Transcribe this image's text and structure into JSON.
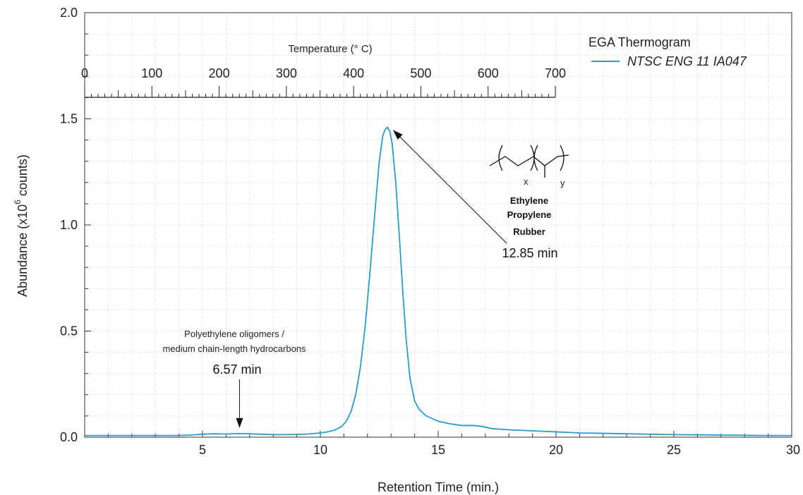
{
  "chart_data": {
    "type": "line",
    "title": "",
    "xlabel": "Retention Time (min.)",
    "ylabel_main": "Abundance (x10",
    "ylabel_exp": "6",
    "ylabel_tail": " counts)",
    "xlim": [
      0,
      30
    ],
    "ylim": [
      0,
      2.0
    ],
    "x_ticks": [
      5,
      10,
      15,
      20,
      25,
      30
    ],
    "x_tick_labels": [
      "5",
      "10",
      "15",
      "20",
      "25",
      "30"
    ],
    "y_ticks": [
      0,
      0.5,
      1.0,
      1.5,
      2.0
    ],
    "y_tick_labels": [
      "0.0",
      "0.5",
      "1.0",
      "1.5",
      "2.0"
    ],
    "grid": true,
    "legend": {
      "title": "EGA Thermogram",
      "placement": "top-right",
      "entries": [
        {
          "name": "NTSC ENG 11 IA047",
          "color": "#2a9cc8"
        }
      ]
    },
    "top_axis": {
      "label": "Temperature (° C)",
      "range": [
        0,
        700
      ],
      "tick_values": [
        0,
        100,
        200,
        300,
        400,
        500,
        600,
        700
      ],
      "tick_labels": [
        "0",
        "100",
        "200",
        "300",
        "400",
        "500",
        "600",
        "700"
      ]
    },
    "series": [
      {
        "name": "NTSC ENG 11 IA047",
        "color": "#2a9cc8",
        "x": [
          0,
          1,
          2,
          3,
          4,
          4.5,
          5,
          5.5,
          6,
          6.57,
          7,
          7.5,
          8,
          8.5,
          9,
          9.5,
          10,
          10.3,
          10.6,
          10.9,
          11.1,
          11.3,
          11.5,
          11.7,
          11.9,
          12.1,
          12.3,
          12.5,
          12.65,
          12.75,
          12.85,
          12.95,
          13.05,
          13.2,
          13.35,
          13.5,
          13.65,
          13.8,
          14.0,
          14.2,
          14.5,
          15,
          15.5,
          16,
          16.5,
          16.9,
          17.3,
          18,
          19,
          20,
          21,
          22,
          23,
          24,
          25,
          26,
          27,
          28,
          29,
          30
        ],
        "y": [
          0.008,
          0.008,
          0.008,
          0.008,
          0.008,
          0.01,
          0.014,
          0.016,
          0.015,
          0.017,
          0.016,
          0.014,
          0.012,
          0.012,
          0.013,
          0.015,
          0.02,
          0.025,
          0.033,
          0.05,
          0.075,
          0.12,
          0.2,
          0.33,
          0.52,
          0.77,
          1.04,
          1.3,
          1.42,
          1.45,
          1.46,
          1.44,
          1.38,
          1.2,
          0.95,
          0.68,
          0.45,
          0.28,
          0.17,
          0.13,
          0.1,
          0.075,
          0.063,
          0.055,
          0.055,
          0.05,
          0.04,
          0.035,
          0.03,
          0.025,
          0.02,
          0.018,
          0.016,
          0.014,
          0.012,
          0.011,
          0.01,
          0.009,
          0.008,
          0.008
        ]
      }
    ],
    "annotations": [
      {
        "id": "pe",
        "x": 6.57,
        "y": 0.017,
        "line1": "Polyethylene oligomers /",
        "line2": "medium chain-length hydrocarbons",
        "time_label": "6.57 min"
      },
      {
        "id": "epr",
        "x": 12.85,
        "y": 1.46,
        "time_label": "12.85 min",
        "name_lines": [
          "Ethylene",
          "Propylene",
          "Rubber"
        ],
        "subscripts": [
          "x",
          "y"
        ]
      }
    ]
  }
}
